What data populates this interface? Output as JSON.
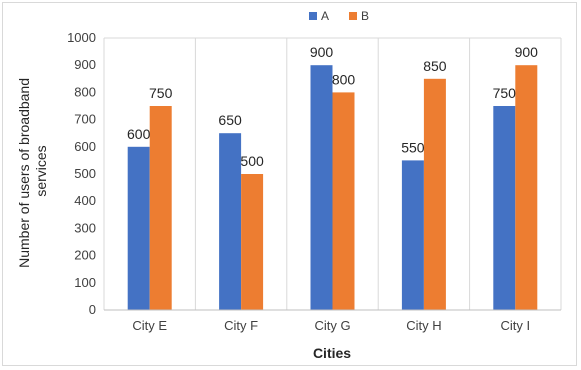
{
  "chart_data": {
    "type": "bar",
    "categories": [
      "City E",
      "City F",
      "City G",
      "City H",
      "City I"
    ],
    "series": [
      {
        "name": "A",
        "values": [
          600,
          650,
          900,
          550,
          750
        ],
        "color": "#4472C4"
      },
      {
        "name": "B",
        "values": [
          750,
          500,
          800,
          850,
          900
        ],
        "color": "#ED7D31"
      }
    ],
    "xlabel": "Cities",
    "ylabel_lines": [
      "Number of users of broadband",
      "services"
    ],
    "ylim": [
      0,
      1000
    ],
    "yticks": [
      0,
      100,
      200,
      300,
      400,
      500,
      600,
      700,
      800,
      900,
      1000
    ],
    "grid": "vertical-category-dividers",
    "legend_position": "top-center",
    "data_labels": true
  }
}
